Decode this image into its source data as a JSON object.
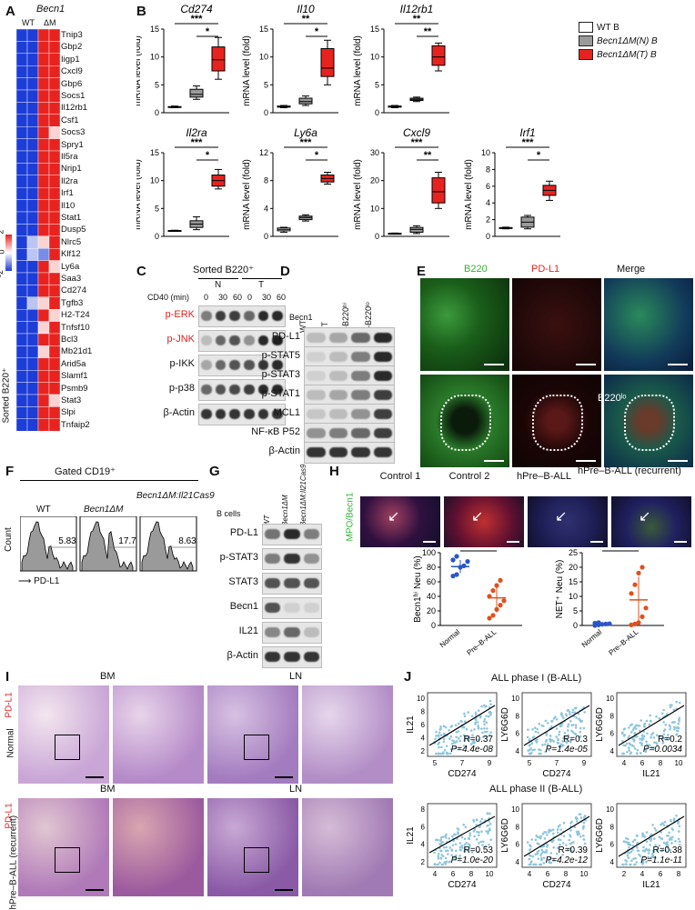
{
  "panels": {
    "A": "A",
    "B": "B",
    "C": "C",
    "D": "D",
    "E": "E",
    "F": "F",
    "G": "G",
    "H": "H",
    "I": "I",
    "J": "J"
  },
  "panelA": {
    "title": "Becn1",
    "col_wt": "WT",
    "col_dm": "ΔM",
    "side": "Sorted B220⁺",
    "scale_hi": "2",
    "scale_mid": "0",
    "scale_lo": "-2",
    "genes": [
      "Tnip3",
      "Gbp2",
      "Iigp1",
      "Cxcl9",
      "Gbp6",
      "Socs1",
      "Il12rb1",
      "Csf1",
      "Socs3",
      "Spry1",
      "Il5ra",
      "Nrip1",
      "Il2ra",
      "Irf1",
      "Il10",
      "Stat1",
      "Dusp5",
      "Nlrc5",
      "Klf12",
      "Ly6a",
      "Saa3",
      "Cd274",
      "Tgfb3",
      "H2-T24",
      "Tnfsf10",
      "Bcl3",
      "Mb21d1",
      "Arid5a",
      "Slamf1",
      "Psmb9",
      "Stat3",
      "Slpi",
      "Tnfaip2"
    ]
  },
  "panelB": {
    "ylabel": "mRNA level (fold)",
    "legend": [
      "WT B",
      "Becn1ΔM(N) B",
      "Becn1ΔM(T) B"
    ],
    "legend_colors": [
      "#ffffff",
      "#9a9a9a",
      "#e8231f"
    ],
    "charts": [
      {
        "title": "Cd274",
        "ticks": [
          "0",
          "5",
          "10",
          "15"
        ],
        "ymax": 15,
        "boxes": [
          [
            0.9,
            1.0,
            1.05,
            1.1,
            1.2
          ],
          [
            2.4,
            2.8,
            3.3,
            4.2,
            4.8
          ],
          [
            6,
            7.5,
            9.5,
            11.8,
            13.5
          ]
        ],
        "stars": [
          "***",
          "*"
        ]
      },
      {
        "title": "Il10",
        "ticks": [
          "0",
          "5",
          "10",
          "15"
        ],
        "ymax": 15,
        "boxes": [
          [
            0.9,
            1.0,
            1.1,
            1.2,
            1.3
          ],
          [
            1.3,
            1.6,
            2.0,
            2.6,
            3.0
          ],
          [
            5,
            6.5,
            8,
            11.5,
            13
          ]
        ],
        "stars": [
          "**",
          "*"
        ]
      },
      {
        "title": "Il12rb1",
        "ticks": [
          "0",
          "5",
          "10",
          "15"
        ],
        "ymax": 15,
        "boxes": [
          [
            0.9,
            1.0,
            1.1,
            1.2,
            1.3
          ],
          [
            2.0,
            2.2,
            2.4,
            2.6,
            2.8
          ],
          [
            7.5,
            8.5,
            10,
            12,
            12.5
          ]
        ],
        "stars": [
          "**",
          "**"
        ]
      },
      {
        "title": "Il2ra",
        "ticks": [
          "0",
          "5",
          "10",
          "15"
        ],
        "ymax": 15,
        "boxes": [
          [
            0.9,
            0.95,
            1.0,
            1.05,
            1.1
          ],
          [
            1.2,
            1.6,
            2.2,
            2.8,
            3.5
          ],
          [
            8.5,
            9,
            10,
            11,
            12
          ]
        ],
        "stars": [
          "***",
          "*"
        ]
      },
      {
        "title": "Ly6a",
        "ticks": [
          "0",
          "4",
          "8",
          "12"
        ],
        "ymax": 12,
        "boxes": [
          [
            0.6,
            0.8,
            1.0,
            1.2,
            1.3
          ],
          [
            2.2,
            2.4,
            2.7,
            2.9,
            3.1
          ],
          [
            7.5,
            7.8,
            8.3,
            8.8,
            9.2
          ]
        ],
        "stars": [
          "***",
          "*"
        ]
      },
      {
        "title": "Cxcl9",
        "ticks": [
          "0",
          "10",
          "20",
          "30"
        ],
        "ymax": 30,
        "boxes": [
          [
            0.8,
            0.9,
            1.0,
            1.1,
            1.2
          ],
          [
            1,
            1.5,
            2.5,
            3.2,
            3.8
          ],
          [
            10,
            12,
            16,
            21,
            23
          ]
        ],
        "stars": [
          "***",
          "**"
        ]
      },
      {
        "title": "Irf1",
        "ticks": [
          "0",
          "2",
          "4",
          "6",
          "8",
          "10"
        ],
        "ymax": 10,
        "boxes": [
          [
            0.9,
            0.95,
            1.0,
            1.05,
            1.1
          ],
          [
            0.9,
            1.1,
            1.7,
            2.3,
            2.5
          ],
          [
            4.3,
            4.9,
            5.5,
            6.1,
            6.6
          ]
        ],
        "stars": [
          "***",
          "*"
        ]
      }
    ]
  },
  "panelC": {
    "title": "Sorted B220⁺",
    "group_n": "N",
    "group_t": "T",
    "cd40": "CD40 (min)",
    "times": [
      "0",
      "30",
      "60",
      "0",
      "30",
      "60"
    ],
    "rows": [
      "p-ERK",
      "p-JNK",
      "p-IKK",
      "p-p38",
      "β-Actin"
    ]
  },
  "panelD": {
    "col_head": "Becn1",
    "lanes": [
      "WT",
      "NT",
      "T-B220ʰⁱ",
      "T-B220ˡᵒ"
    ],
    "rows": [
      "PD-L1",
      "p-STAT5",
      "p-STAT3",
      "p-STAT1",
      "MCL1",
      "NF-κB P52",
      "β-Actin"
    ]
  },
  "panelE": {
    "cols": [
      "B220",
      "PD-L1",
      "Merge"
    ],
    "inset": "B220ˡᵒ"
  },
  "panelF": {
    "title": "Gated CD19⁺",
    "groups": [
      "WT",
      "Becn1ΔM",
      "Becn1ΔM:Il21Cas9"
    ],
    "values": [
      "5.83",
      "17.7",
      "8.63"
    ],
    "ylabel": "Count",
    "xlabel": "PD-L1"
  },
  "panelG": {
    "col_head": "B cells",
    "lanes": [
      "WT",
      "Becn1ΔM",
      "Becn1ΔM:Il21Cas9"
    ],
    "rows": [
      "PD-L1",
      "p-STAT3",
      "STAT3",
      "Becn1",
      "IL21",
      "β-Actin"
    ]
  },
  "panelH": {
    "cols": [
      "Control 1",
      "Control 2",
      "hPre–B-ALL",
      "hPre–B-ALL (recurrent)"
    ],
    "side": "MPO/Becn1",
    "plot1": {
      "ylabel": "Becn1ʰⁱ Neu (%)",
      "ticks": [
        "0",
        "20",
        "40",
        "60",
        "80",
        "100"
      ],
      "groups": [
        "Normal",
        "Pre–B-ALL"
      ],
      "star": "*",
      "g1": [
        68,
        70,
        80,
        82,
        88,
        90,
        95
      ],
      "g1_mean": 81,
      "g1_sd": 9,
      "g2": [
        10,
        14,
        22,
        28,
        34,
        40,
        48,
        55,
        62
      ],
      "g2_mean": 38,
      "g2_sd": 20
    },
    "plot2": {
      "ylabel": "NET⁺ Neu (%)",
      "ticks": [
        "0",
        "5",
        "10",
        "15",
        "20",
        "25"
      ],
      "groups": [
        "Normal",
        "Pre–B-ALL"
      ],
      "star": "*",
      "g1": [
        0,
        0.2,
        0.4,
        0.5,
        0.6,
        0.8,
        1.0
      ],
      "g1_mean": 0.5,
      "g1_sd": 0.4,
      "g2": [
        0.2,
        0.5,
        1,
        3,
        6,
        11,
        14,
        18,
        20
      ],
      "g2_mean": 8.8,
      "g2_sd": 8
    }
  },
  "panelI": {
    "side": "PD-L1",
    "row1": "Normal",
    "row2": "hPre–B-ALL (recurrent)",
    "cols": [
      "BM",
      "LN"
    ]
  },
  "panelJ": {
    "phase1": "ALL phase I (B-ALL)",
    "phase2": "ALL phase II (B-ALL)",
    "plots": [
      {
        "x": "CD274",
        "y": "IL21",
        "R": "R=0.37",
        "P": "P=4.4e-08",
        "xt": [
          "5",
          "7",
          "9"
        ],
        "yt": [
          "2",
          "4",
          "6",
          "8",
          "10"
        ]
      },
      {
        "x": "CD274",
        "y": "LY6G6D",
        "R": "R=0.3",
        "P": "P=1.4e-05",
        "xt": [
          "5",
          "7",
          "9"
        ],
        "yt": [
          "4",
          "6",
          "8",
          "10"
        ]
      },
      {
        "x": "IL21",
        "y": "LY6G6D",
        "R": "R=0.2",
        "P": "P=0.0034",
        "xt": [
          "4",
          "6",
          "8",
          "10"
        ],
        "yt": [
          "4",
          "6",
          "8",
          "10"
        ]
      },
      {
        "x": "CD274",
        "y": "IL21",
        "R": "R=0.53",
        "P": "P=1.0e-20",
        "xt": [
          "4",
          "6",
          "8",
          "10"
        ],
        "yt": [
          "2",
          "4",
          "6",
          "8"
        ]
      },
      {
        "x": "CD274",
        "y": "LY6G6D",
        "R": "R=0.39",
        "P": "P=4.2e-12",
        "xt": [
          "4",
          "6",
          "8",
          "10"
        ],
        "yt": [
          "4",
          "6",
          "8",
          "10"
        ]
      },
      {
        "x": "IL21",
        "y": "LY6G6D",
        "R": "R=0.38",
        "P": "P=1.1e-11",
        "xt": [
          "2",
          "4",
          "6",
          "8"
        ],
        "yt": [
          "4",
          "6",
          "8",
          "10"
        ]
      }
    ]
  }
}
